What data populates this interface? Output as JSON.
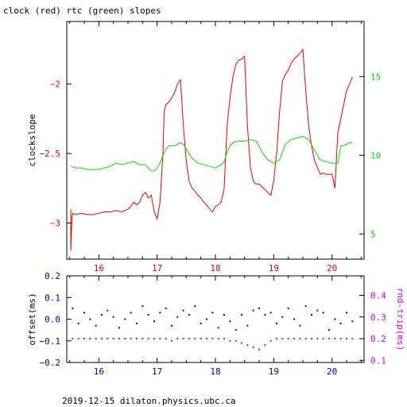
{
  "title": "clock (red) rtc (green) slopes",
  "footer": "2019-12-15  dilaton.physics.ubc.ca",
  "colors": {
    "clock": "#ee0000",
    "rtc": "#00dd00",
    "offset": "#0000bb",
    "rndtrip": "#dd00dd",
    "axis": "#000000"
  },
  "chart_data": [
    {
      "type": "line",
      "ylabel": "clockslope",
      "y2label": "",
      "xticks": [
        16,
        17,
        18,
        19,
        20
      ],
      "xlim": [
        15.45,
        20.55
      ],
      "ylim": [
        -3.26,
        -1.55
      ],
      "yticks": [
        -3,
        -2.5,
        -2
      ],
      "y2lim": [
        3.4,
        18.5
      ],
      "y2ticks": [
        5,
        10,
        15
      ],
      "series": [
        {
          "axis": "left",
          "color": "red",
          "x": [
            15.52,
            15.52,
            15.54,
            15.56,
            15.6,
            15.7,
            15.8,
            15.9,
            16.0,
            16.1,
            16.2,
            16.3,
            16.4,
            16.5,
            16.55,
            16.6,
            16.65,
            16.7,
            16.75,
            16.8,
            16.85,
            16.9,
            16.95,
            17.0,
            17.05,
            17.1,
            17.12,
            17.15,
            17.2,
            17.25,
            17.3,
            17.35,
            17.4,
            17.45,
            17.5,
            17.55,
            17.6,
            17.65,
            17.7,
            17.75,
            17.8,
            17.85,
            17.9,
            17.95,
            18.0,
            18.05,
            18.1,
            18.15,
            18.2,
            18.25,
            18.3,
            18.35,
            18.4,
            18.45,
            18.5,
            18.55,
            18.6,
            18.65,
            18.7,
            18.75,
            18.8,
            18.85,
            18.9,
            18.95,
            19.0,
            19.05,
            19.1,
            19.15,
            19.2,
            19.25,
            19.3,
            19.35,
            19.4,
            19.45,
            19.5,
            19.55,
            19.6,
            19.65,
            19.7,
            19.75,
            19.8,
            19.85,
            19.9,
            19.95,
            20.0,
            20.05,
            20.1,
            20.15,
            20.2,
            20.25,
            20.3,
            20.35
          ],
          "y": [
            -2.9,
            -3.2,
            -2.95,
            -2.93,
            -2.94,
            -2.93,
            -2.94,
            -2.94,
            -2.93,
            -2.92,
            -2.92,
            -2.91,
            -2.92,
            -2.9,
            -2.88,
            -2.85,
            -2.87,
            -2.85,
            -2.8,
            -2.78,
            -2.82,
            -2.8,
            -2.92,
            -2.97,
            -2.85,
            -2.5,
            -2.2,
            -2.15,
            -2.13,
            -2.1,
            -2.06,
            -2.0,
            -1.97,
            -2.3,
            -2.55,
            -2.7,
            -2.75,
            -2.77,
            -2.8,
            -2.82,
            -2.85,
            -2.87,
            -2.9,
            -2.92,
            -2.88,
            -2.87,
            -2.85,
            -2.75,
            -2.3,
            -2.1,
            -1.95,
            -1.86,
            -1.83,
            -1.82,
            -1.8,
            -2.3,
            -2.6,
            -2.7,
            -2.72,
            -2.72,
            -2.74,
            -2.76,
            -2.78,
            -2.8,
            -2.7,
            -2.5,
            -2.2,
            -1.98,
            -1.93,
            -1.9,
            -1.85,
            -1.82,
            -1.8,
            -1.78,
            -1.75,
            -2.05,
            -2.3,
            -2.45,
            -2.55,
            -2.6,
            -2.65,
            -2.64,
            -2.65,
            -2.65,
            -2.65,
            -2.75,
            -2.35,
            -2.25,
            -2.15,
            -2.05,
            -2.0,
            -1.95
          ]
        },
        {
          "axis": "right",
          "color": "green",
          "x": [
            15.52,
            15.6,
            15.7,
            15.8,
            15.9,
            16.0,
            16.1,
            16.2,
            16.3,
            16.4,
            16.5,
            16.6,
            16.7,
            16.8,
            16.85,
            16.9,
            16.95,
            17.0,
            17.05,
            17.1,
            17.15,
            17.2,
            17.25,
            17.3,
            17.35,
            17.4,
            17.45,
            17.5,
            17.6,
            17.7,
            17.8,
            17.9,
            18.0,
            18.1,
            18.15,
            18.2,
            18.25,
            18.3,
            18.4,
            18.5,
            18.6,
            18.7,
            18.8,
            18.9,
            19.0,
            19.1,
            19.15,
            19.2,
            19.3,
            19.4,
            19.5,
            19.6,
            19.7,
            19.75,
            19.8,
            19.9,
            20.0,
            20.1,
            20.15,
            20.2,
            20.25,
            20.3,
            20.35
          ],
          "y": [
            9.3,
            9.2,
            9.2,
            9.1,
            9.1,
            9.1,
            9.2,
            9.3,
            9.5,
            9.4,
            9.5,
            9.6,
            9.4,
            9.4,
            9.2,
            9.0,
            9.0,
            9.2,
            9.5,
            10.0,
            10.4,
            10.6,
            10.6,
            10.6,
            10.7,
            10.8,
            10.7,
            10.4,
            9.8,
            9.5,
            9.4,
            9.3,
            9.2,
            9.4,
            9.6,
            10.2,
            10.6,
            10.8,
            10.9,
            10.9,
            11.0,
            10.9,
            10.2,
            9.7,
            9.5,
            9.7,
            10.2,
            10.7,
            11.0,
            11.1,
            11.2,
            11.0,
            10.3,
            10.0,
            9.7,
            9.6,
            9.5,
            9.5,
            10.6,
            10.6,
            10.7,
            10.8,
            10.8
          ]
        }
      ]
    },
    {
      "type": "scatter",
      "ylabel": "offset(ms)",
      "y2label": "rnd-trip(ms)",
      "xticks": [
        16,
        17,
        18,
        19,
        20
      ],
      "xlim": [
        15.45,
        20.55
      ],
      "ylim": [
        -0.2,
        0.2
      ],
      "yticks": [
        -0.2,
        -0.1,
        0,
        0.1,
        0.2
      ],
      "y2lim": [
        0.09,
        0.49
      ],
      "y2ticks": [
        0.1,
        0.2,
        0.3,
        0.4
      ],
      "series": [
        {
          "axis": "left",
          "color": "blue",
          "x": [
            15.55,
            15.65,
            15.75,
            15.85,
            15.95,
            16.05,
            16.15,
            16.25,
            16.35,
            16.45,
            16.55,
            16.65,
            16.75,
            16.85,
            16.95,
            17.05,
            17.15,
            17.25,
            17.35,
            17.45,
            17.55,
            17.65,
            17.75,
            17.85,
            17.95,
            18.05,
            18.15,
            18.25,
            18.35,
            18.45,
            18.55,
            18.65,
            18.75,
            18.85,
            18.95,
            19.05,
            19.15,
            19.25,
            19.35,
            19.45,
            19.55,
            19.65,
            19.75,
            19.85,
            19.95,
            20.05,
            20.15,
            20.25,
            20.35
          ],
          "y": [
            0.05,
            -0.02,
            0.03,
            0.0,
            -0.03,
            0.02,
            0.04,
            0.01,
            -0.04,
            0.0,
            0.03,
            -0.02,
            0.06,
            0.02,
            -0.01,
            0.03,
            0.05,
            -0.03,
            0.01,
            0.04,
            0.02,
            0.06,
            -0.02,
            0.0,
            0.03,
            -0.04,
            0.02,
            -0.01,
            -0.05,
            0.02,
            -0.03,
            0.04,
            0.05,
            0.02,
            0.03,
            -0.02,
            0.01,
            0.05,
            0.0,
            -0.03,
            0.06,
            0.02,
            0.04,
            0.03,
            -0.05,
            0.0,
            -0.02,
            0.03,
            -0.01
          ]
        },
        {
          "axis": "right",
          "color": "magenta",
          "x": [
            15.55,
            15.65,
            15.75,
            15.85,
            15.95,
            16.05,
            16.15,
            16.25,
            16.35,
            16.45,
            16.55,
            16.65,
            16.75,
            16.85,
            16.95,
            17.05,
            17.15,
            17.25,
            17.35,
            17.45,
            17.55,
            17.65,
            17.75,
            17.85,
            17.95,
            18.05,
            18.15,
            18.25,
            18.35,
            18.45,
            18.55,
            18.65,
            18.75,
            18.85,
            18.95,
            19.05,
            19.15,
            19.25,
            19.35,
            19.45,
            19.55,
            19.65,
            19.75,
            19.85,
            19.95,
            20.05,
            20.15,
            20.25,
            20.35
          ],
          "y": [
            0.2,
            0.2,
            0.2,
            0.2,
            0.2,
            0.2,
            0.2,
            0.2,
            0.2,
            0.2,
            0.2,
            0.2,
            0.2,
            0.2,
            0.2,
            0.2,
            0.2,
            0.19,
            0.2,
            0.2,
            0.2,
            0.2,
            0.2,
            0.2,
            0.2,
            0.2,
            0.2,
            0.19,
            0.19,
            0.18,
            0.17,
            0.16,
            0.15,
            0.17,
            0.19,
            0.2,
            0.2,
            0.2,
            0.2,
            0.2,
            0.2,
            0.2,
            0.2,
            0.2,
            0.2,
            0.2,
            0.2,
            0.2,
            0.2
          ]
        }
      ]
    }
  ]
}
